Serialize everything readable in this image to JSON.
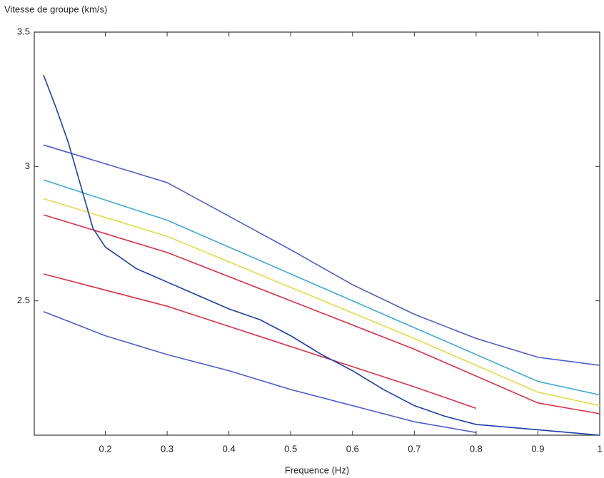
{
  "chart_data": {
    "type": "line",
    "y_label": "Vitesse de groupe (km/s)",
    "x_label": "Frequence (Hz)",
    "xlim": [
      0.085,
      1
    ],
    "xticks": [
      0.2,
      0.3,
      0.4,
      0.5,
      0.6,
      0.7,
      0.8,
      0.9,
      1
    ],
    "ylim": [
      2.0,
      3.5
    ],
    "yticks": [
      2.5,
      3,
      3.5
    ],
    "series": [
      {
        "color": "#4a5fc9",
        "x": [
          0.1,
          0.3,
          0.5,
          0.6,
          0.7,
          0.8,
          0.9,
          1.0
        ],
        "values": [
          3.08,
          2.94,
          2.69,
          2.56,
          2.45,
          2.36,
          2.29,
          2.26
        ]
      },
      {
        "color": "#3fa9d6",
        "x": [
          0.1,
          0.3,
          0.5,
          0.7,
          0.9,
          1.0
        ],
        "values": [
          2.95,
          2.8,
          2.6,
          2.4,
          2.2,
          2.15
        ]
      },
      {
        "color": "#e8d84a",
        "x": [
          0.1,
          0.3,
          0.5,
          0.7,
          0.9,
          1.0
        ],
        "values": [
          2.88,
          2.74,
          2.55,
          2.36,
          2.16,
          2.11
        ]
      },
      {
        "color": "#d9304a",
        "x": [
          0.1,
          0.3,
          0.5,
          0.7,
          0.9,
          1.0
        ],
        "values": [
          2.82,
          2.68,
          2.5,
          2.32,
          2.12,
          2.08
        ]
      },
      {
        "color": "#d9304a",
        "x": [
          0.1,
          0.3,
          0.5,
          0.7,
          0.8
        ],
        "values": [
          2.6,
          2.48,
          2.33,
          2.18,
          2.1
        ]
      },
      {
        "color": "#4a5fc9",
        "x": [
          0.1,
          0.2,
          0.3,
          0.4,
          0.5,
          0.6,
          0.7,
          0.8
        ],
        "values": [
          2.46,
          2.37,
          2.3,
          2.24,
          2.17,
          2.11,
          2.05,
          2.01
        ]
      },
      {
        "color": "#1a3fa8",
        "x": [
          0.1,
          0.12,
          0.14,
          0.16,
          0.18,
          0.2,
          0.25,
          0.3,
          0.35,
          0.4,
          0.45,
          0.5,
          0.55,
          0.6,
          0.65,
          0.7,
          0.75,
          0.8,
          0.85,
          0.9,
          0.95,
          1.0
        ],
        "values": [
          3.34,
          3.22,
          3.09,
          2.93,
          2.77,
          2.7,
          2.62,
          2.57,
          2.52,
          2.47,
          2.43,
          2.37,
          2.3,
          2.24,
          2.17,
          2.11,
          2.07,
          2.04,
          2.03,
          2.02,
          2.01,
          2.0
        ]
      }
    ]
  }
}
